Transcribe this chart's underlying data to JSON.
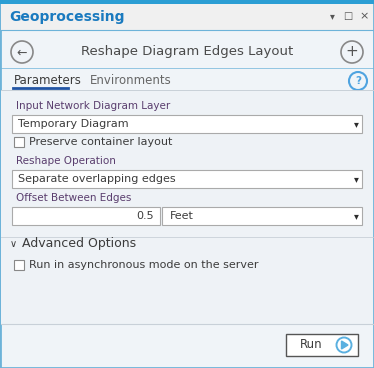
{
  "title_bar_text": "Geoprocessing",
  "title_bar_text_color": "#1a7abf",
  "title_bar_bg": "#f0f0f0",
  "top_accent_color": "#2b9ed4",
  "window_border_color": "#6db3d9",
  "header_text": "Reshape Diagram Edges Layout",
  "header_color": "#4a4a4a",
  "nav_circle_color": "#888888",
  "tab1": "Parameters",
  "tab2": "Environments",
  "tab_color": "#3c3c3c",
  "tab2_color": "#666666",
  "tab_underline_color": "#2255a4",
  "question_color": "#4fa3e0",
  "label1": "Input Network Diagram Layer",
  "dropdown1_value": "Temporary Diagram",
  "checkbox1_label": "Preserve container layout",
  "label2": "Reshape Operation",
  "dropdown2_value": "Separate overlapping edges",
  "label3": "Offset Between Edges",
  "offset_value": "0.5",
  "units_value": "Feet",
  "advanced_label": "Advanced Options",
  "checkbox2_label": "Run in asynchronous mode on the server",
  "run_button": "Run",
  "bg_color": "#f0f4f8",
  "content_bg": "#eef2f6",
  "dropdown_bg": "#ffffff",
  "dropdown_border": "#aaaaaa",
  "text_color": "#3c3c3c",
  "label_color": "#5a3e6e",
  "run_btn_border": "#555555",
  "run_btn_icon_color": "#5ab0e0",
  "arrow_color": "#2c2c2c"
}
